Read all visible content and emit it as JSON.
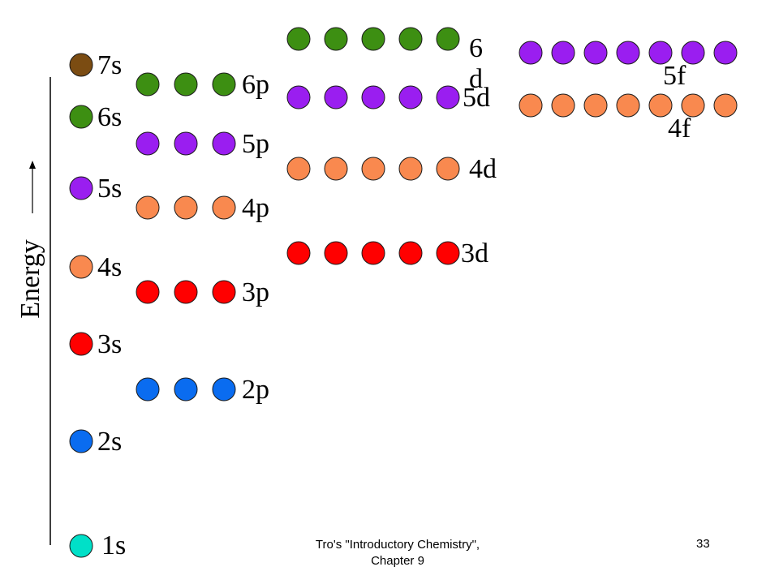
{
  "diagram": {
    "axis_label": "Energy",
    "colors": {
      "1s": "#00e0c8",
      "2": "#0a6cf0",
      "3": "#ff0000",
      "4": "#f9894f",
      "5": "#9a1ef0",
      "6": "#3d8f12",
      "7s": "#7b4c12"
    },
    "orbitals": [
      {
        "label": "1s",
        "circles": 1,
        "color_key": "1s"
      },
      {
        "label": "2s",
        "circles": 1,
        "color_key": "2"
      },
      {
        "label": "3s",
        "circles": 1,
        "color_key": "3"
      },
      {
        "label": "4s",
        "circles": 1,
        "color_key": "4"
      },
      {
        "label": "5s",
        "circles": 1,
        "color_key": "5"
      },
      {
        "label": "6s",
        "circles": 1,
        "color_key": "6"
      },
      {
        "label": "7s",
        "circles": 1,
        "color_key": "7s"
      },
      {
        "label": "2p",
        "circles": 3,
        "color_key": "2"
      },
      {
        "label": "3p",
        "circles": 3,
        "color_key": "3"
      },
      {
        "label": "4p",
        "circles": 3,
        "color_key": "4"
      },
      {
        "label": "5p",
        "circles": 3,
        "color_key": "5"
      },
      {
        "label": "6p",
        "circles": 3,
        "color_key": "6"
      },
      {
        "label": "3d",
        "circles": 5,
        "color_key": "3"
      },
      {
        "label": "4d",
        "circles": 5,
        "color_key": "4"
      },
      {
        "label": "5d",
        "circles": 5,
        "color_key": "5"
      },
      {
        "label": "6 d",
        "circles": 5,
        "color_key": "6"
      },
      {
        "label": "4f",
        "circles": 7,
        "color_key": "4"
      },
      {
        "label": "5f",
        "circles": 7,
        "color_key": "5"
      }
    ]
  },
  "footer": {
    "source_line1": "Tro's \"Introductory Chemistry\",",
    "source_line2": "Chapter 9",
    "page_number": "33"
  }
}
